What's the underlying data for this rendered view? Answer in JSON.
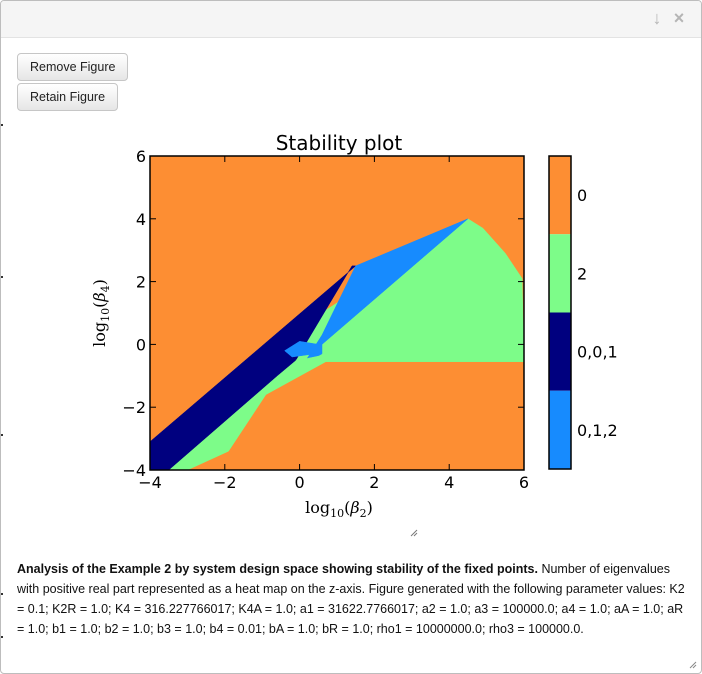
{
  "dialog": {
    "actions": {
      "minimize_icon": "arrow-down-icon",
      "close_icon": "close-icon"
    },
    "buttons": {
      "remove": "Remove Figure",
      "retain": "Retain Figure"
    }
  },
  "chart_data": {
    "type": "heatmap",
    "title": "Stability plot",
    "xlabel": "log10(β2)",
    "ylabel": "log10(β4)",
    "xlim": [
      -4,
      6
    ],
    "ylim": [
      -4,
      6
    ],
    "xticks": [
      "−4",
      "−2",
      "0",
      "2",
      "4",
      "6"
    ],
    "yticks": [
      "−4",
      "−2",
      "0",
      "2",
      "4",
      "6"
    ],
    "colorbar": {
      "labels": [
        "0",
        "2",
        "0,0,1",
        "0,1,2"
      ],
      "colors": [
        "#fd8e33",
        "#7dfc89",
        "#00007f",
        "#178bfe"
      ]
    },
    "regions": [
      {
        "label": "0",
        "color": "#fd8e33",
        "polygon": [
          [
            -4,
            -4
          ],
          [
            6,
            -4
          ],
          [
            6,
            6
          ],
          [
            -4,
            6
          ]
        ]
      },
      {
        "label": "2",
        "color": "#7dfc89",
        "polygon": [
          [
            -3.0,
            -4
          ],
          [
            -1.9,
            -3.4
          ],
          [
            -0.9,
            -1.6
          ],
          [
            0.7,
            -0.55
          ],
          [
            6,
            -0.55
          ],
          [
            5.95,
            2.1
          ],
          [
            5.5,
            2.9
          ],
          [
            4.9,
            3.7
          ],
          [
            4.5,
            4.0
          ],
          [
            -0.2,
            0.4
          ],
          [
            -0.1,
            -0.5
          ],
          [
            -0.8,
            -1.2
          ],
          [
            -3.5,
            -4
          ]
        ]
      },
      {
        "label": "0,0,1",
        "color": "#00007f",
        "polygon": [
          [
            -4,
            -3.1
          ],
          [
            1.5,
            2.5
          ],
          [
            1.4,
            2.5
          ],
          [
            -0.1,
            -0.5
          ],
          [
            -0.6,
            -1.0
          ],
          [
            -3.5,
            -4
          ],
          [
            -4,
            -4
          ]
        ]
      },
      {
        "label": "0,1,2",
        "color": "#178bfe",
        "polygon": [
          [
            1.5,
            2.5
          ],
          [
            4.5,
            4.0
          ],
          [
            0.6,
            0.0
          ],
          [
            0.6,
            -0.3
          ],
          [
            0.3,
            -0.5
          ],
          [
            0.2,
            -0.45
          ],
          [
            0.6,
            0.3
          ]
        ]
      },
      {
        "label": "0,1,2",
        "color": "#178bfe",
        "polygon": [
          [
            0.0,
            0.1
          ],
          [
            0.5,
            0.0
          ],
          [
            0.4,
            -0.3
          ],
          [
            -0.2,
            -0.4
          ],
          [
            -0.4,
            -0.2
          ]
        ]
      },
      {
        "label": "2",
        "color": "#7dfc89",
        "polygon": [
          [
            0.6,
            -0.35
          ],
          [
            0.7,
            -0.55
          ],
          [
            -0.1,
            -0.5
          ],
          [
            0.2,
            -0.45
          ]
        ]
      }
    ]
  },
  "caption": {
    "bold": "Analysis of the Example 2 by system design space showing stability of the fixed points.",
    "text": " Number of eigenvalues with positive real part represented as a heat map on the z-axis. Figure generated with the following parameter values: K2 = 0.1; K2R = 1.0; K4 = 316.227766017; K4A = 1.0; a1 = 31622.7766017; a2 = 1.0; a3 = 100000.0; a4 = 1.0; aA = 1.0; aR = 1.0; b1 = 1.0; b2 = 1.0; b3 = 1.0; b4 = 0.01; bA = 1.0; bR = 1.0; rho1 = 10000000.0; rho3 = 100000.0."
  }
}
